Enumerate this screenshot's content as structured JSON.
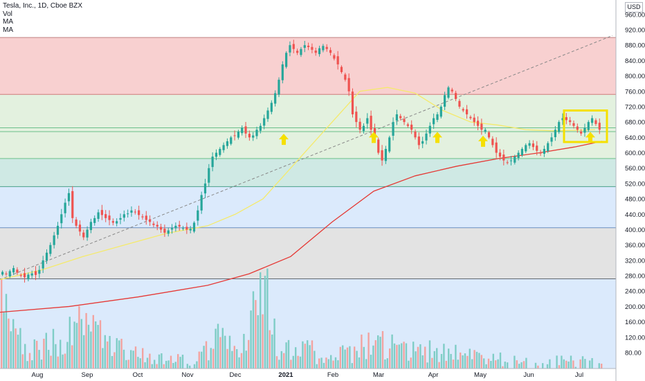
{
  "legend": {
    "title": "Tesla, Inc., 1D, Cboe BZX",
    "vol": "Vol",
    "ma1": "MA",
    "ma2": "MA"
  },
  "currency": "USD",
  "colors": {
    "up": "#26a69a",
    "down": "#ef5350",
    "ma_fast": "#f5ea6b",
    "ma_slow": "#e53935",
    "trend": "#888888",
    "arrow": "#f5e000",
    "box": "#f5e000"
  },
  "chart_data": {
    "type": "candlestick",
    "title": "Tesla, Inc., 1D, Cboe BZX",
    "y_ticks": [
      "960.00",
      "920.00",
      "880.00",
      "840.00",
      "800.00",
      "760.00",
      "720.00",
      "680.00",
      "640.00",
      "600.00",
      "560.00",
      "520.00",
      "480.00",
      "440.00",
      "400.00",
      "360.00",
      "320.00",
      "280.00",
      "240.00",
      "200.00",
      "160.00",
      "120.00",
      "80.00"
    ],
    "x_ticks": [
      {
        "label": "Aug",
        "bold": false
      },
      {
        "label": "Sep",
        "bold": false
      },
      {
        "label": "Oct",
        "bold": false
      },
      {
        "label": "Nov",
        "bold": false
      },
      {
        "label": "Dec",
        "bold": false
      },
      {
        "label": "2021",
        "bold": true
      },
      {
        "label": "Feb",
        "bold": false
      },
      {
        "label": "Mar",
        "bold": false
      },
      {
        "label": "Apr",
        "bold": false
      },
      {
        "label": "May",
        "bold": false
      },
      {
        "label": "Jun",
        "bold": false
      },
      {
        "label": "Jul",
        "bold": false
      }
    ],
    "price_zones": [
      {
        "from": 900,
        "to": 752,
        "color": "#f8d0d0"
      },
      {
        "from": 752,
        "to": 585,
        "color": "#e3f1df"
      },
      {
        "from": 585,
        "to": 512,
        "color": "#cfe9e4"
      },
      {
        "from": 512,
        "to": 405,
        "color": "#dbeafc"
      },
      {
        "from": 405,
        "to": 272,
        "color": "#e3e3e3"
      },
      {
        "from": 272,
        "to": 0,
        "color": "#dbeafc"
      }
    ],
    "zone_lines": [
      {
        "price": 900,
        "color": "#c08080"
      },
      {
        "price": 752,
        "color": "#d07a7a"
      },
      {
        "price": 665,
        "color": "#6abf8a"
      },
      {
        "price": 655,
        "color": "#6abf8a"
      },
      {
        "price": 585,
        "color": "#6abf8a"
      },
      {
        "price": 512,
        "color": "#4aa08a"
      },
      {
        "price": 405,
        "color": "#6a8fc0"
      },
      {
        "price": 272,
        "color": "#606870"
      }
    ],
    "trendline": {
      "from": {
        "x": 0,
        "price": 270
      },
      "to": {
        "x": 885,
        "price": 905
      }
    },
    "arrows": [
      {
        "x": 410,
        "price": 635
      },
      {
        "x": 540,
        "price": 640
      },
      {
        "x": 632,
        "price": 640
      },
      {
        "x": 698,
        "price": 630
      },
      {
        "x": 853,
        "price": 640
      }
    ],
    "highlight_box": {
      "x0": 815,
      "x1": 877,
      "top_price": 710,
      "bottom_price": 628
    },
    "close_series": [
      290,
      285,
      292,
      300,
      288,
      280,
      276,
      283,
      286,
      282,
      295,
      320,
      340,
      360,
      385,
      410,
      440,
      470,
      495,
      430,
      410,
      395,
      380,
      400,
      420,
      430,
      445,
      438,
      430,
      425,
      418,
      422,
      430,
      440,
      442,
      450,
      446,
      438,
      432,
      425,
      420,
      412,
      408,
      400,
      392,
      398,
      404,
      410,
      408,
      404,
      400,
      402,
      418,
      450,
      490,
      520,
      560,
      590,
      600,
      610,
      620,
      630,
      640,
      645,
      655,
      665,
      650,
      640,
      645,
      660,
      670,
      690,
      710,
      730,
      755,
      790,
      830,
      860,
      880,
      870,
      860,
      870,
      880,
      875,
      868,
      860,
      872,
      878,
      870,
      860,
      845,
      830,
      810,
      790,
      760,
      700,
      680,
      660,
      670,
      690,
      660,
      640,
      600,
      580,
      610,
      640,
      680,
      700,
      690,
      680,
      670,
      660,
      640,
      620,
      630,
      650,
      670,
      690,
      700,
      720,
      750,
      770,
      760,
      740,
      720,
      710,
      700,
      690,
      680,
      670,
      660,
      660,
      640,
      620,
      600,
      590,
      580,
      575,
      580,
      590,
      600,
      610,
      620,
      625,
      615,
      605,
      598,
      610,
      625,
      640,
      660,
      680,
      690,
      685,
      680,
      670,
      660,
      650,
      665,
      680,
      690,
      675,
      660
    ],
    "ma_fast": [
      [
        0,
        270
      ],
      [
        60,
        295
      ],
      [
        120,
        330
      ],
      [
        180,
        360
      ],
      [
        240,
        390
      ],
      [
        300,
        410
      ],
      [
        340,
        440
      ],
      [
        380,
        480
      ],
      [
        420,
        560
      ],
      [
        470,
        660
      ],
      [
        520,
        760
      ],
      [
        560,
        770
      ],
      [
        600,
        755
      ],
      [
        640,
        710
      ],
      [
        680,
        680
      ],
      [
        720,
        672
      ],
      [
        760,
        660
      ],
      [
        800,
        657
      ],
      [
        860,
        660
      ]
    ],
    "ma_slow": [
      [
        0,
        185
      ],
      [
        100,
        200
      ],
      [
        200,
        225
      ],
      [
        300,
        255
      ],
      [
        360,
        285
      ],
      [
        420,
        330
      ],
      [
        480,
        420
      ],
      [
        540,
        500
      ],
      [
        600,
        540
      ],
      [
        660,
        565
      ],
      [
        720,
        585
      ],
      [
        780,
        600
      ],
      [
        830,
        615
      ],
      [
        870,
        630
      ]
    ],
    "volume": [
      [
        0,
        230
      ],
      [
        40,
        90
      ],
      [
        80,
        120
      ],
      [
        120,
        170
      ],
      [
        160,
        110
      ],
      [
        200,
        95
      ],
      [
        240,
        70
      ],
      [
        280,
        60
      ],
      [
        320,
        140
      ],
      [
        340,
        80
      ],
      [
        383,
        280
      ],
      [
        400,
        90
      ],
      [
        440,
        100
      ],
      [
        480,
        70
      ],
      [
        540,
        120
      ],
      [
        580,
        100
      ],
      [
        620,
        90
      ],
      [
        660,
        80
      ],
      [
        700,
        70
      ],
      [
        740,
        60
      ],
      [
        780,
        55
      ],
      [
        820,
        60
      ],
      [
        870,
        55
      ]
    ]
  }
}
